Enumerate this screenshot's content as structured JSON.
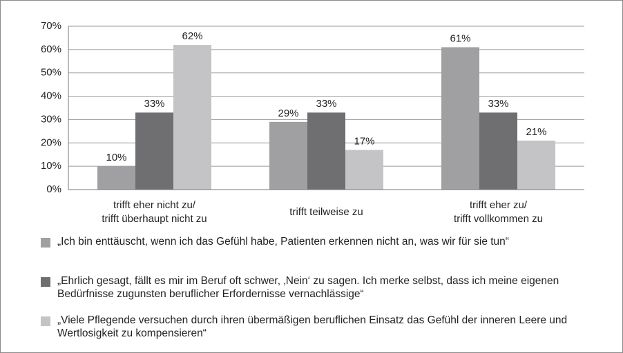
{
  "chart_data": {
    "type": "bar",
    "categories": [
      [
        "trifft eher nicht zu/",
        "trifft überhaupt nicht zu"
      ],
      [
        "trifft teilweise zu"
      ],
      [
        "trifft eher zu/",
        "trifft vollkommen zu"
      ]
    ],
    "series": [
      {
        "name": "„Ich bin enttäuscht, wenn ich das Gefühl habe, Patienten erkennen nicht an, was wir für sie tun“",
        "color": "#a0a0a2",
        "values": [
          10,
          29,
          61
        ],
        "value_labels": [
          "10%",
          "29%",
          "61%"
        ]
      },
      {
        "name": "„Ehrlich gesagt, fällt es mir im Beruf oft schwer, ‚Nein‘ zu sagen. Ich merke selbst, dass ich meine eigenen Bedürfnisse zugunsten beruflicher Erfordernisse vernachlässige“",
        "color": "#6f6f71",
        "values": [
          33,
          33,
          33
        ],
        "value_labels": [
          "33%",
          "33%",
          "33%"
        ]
      },
      {
        "name": "„Viele Pflegende versuchen durch ihren übermäßigen beruflichen Einsatz das Gefühl der inneren Leere und Wertlosigkeit zu kompensieren“",
        "color": "#c4c4c6",
        "values": [
          62,
          17,
          21
        ],
        "value_labels": [
          "62%",
          "17%",
          "21%"
        ]
      }
    ],
    "ylim": [
      0,
      70
    ],
    "yticks": [
      {
        "value": 0,
        "label": "0%"
      },
      {
        "value": 10,
        "label": "10%"
      },
      {
        "value": 20,
        "label": "20%"
      },
      {
        "value": 30,
        "label": "30%"
      },
      {
        "value": 40,
        "label": "40%"
      },
      {
        "value": 50,
        "label": "50%"
      },
      {
        "value": 60,
        "label": "60%"
      },
      {
        "value": 70,
        "label": "70%"
      }
    ],
    "grid": true,
    "legend": "bottom"
  }
}
